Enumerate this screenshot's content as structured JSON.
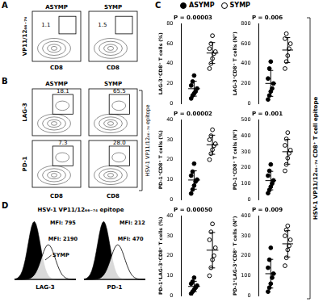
{
  "chart_data": [
    {
      "type": "scatter",
      "y_label": "LAG-3⁺CD8⁺ T cells (%)",
      "annotation": "P = 0.00003",
      "ylim": [
        0,
        80
      ],
      "yticks": [
        0,
        20,
        40,
        60,
        80
      ],
      "grid": false,
      "tick_labels": "y",
      "series": [
        {
          "name": "ASYMP",
          "color": "#000000",
          "marker": "filled",
          "values": [
            5,
            8,
            10,
            12,
            15,
            18,
            22,
            28
          ],
          "mean": 14.8,
          "sd": 7.5
        },
        {
          "name": "SYMP",
          "color": "#000000",
          "marker": "open",
          "values": [
            35,
            40,
            45,
            50,
            52,
            55,
            60,
            68
          ],
          "mean": 50.6,
          "sd": 10.5
        }
      ]
    },
    {
      "type": "scatter",
      "y_label": "LAG-3⁺CD8⁺ T cells (N°)",
      "annotation": "P = 0.006",
      "ylim": [
        0,
        800
      ],
      "yticks": [
        0,
        200,
        400,
        600,
        800
      ],
      "grid": false,
      "tick_labels": "y",
      "series": [
        {
          "name": "ASYMP",
          "color": "#000000",
          "marker": "filled",
          "values": [
            40,
            80,
            120,
            150,
            200,
            250,
            350,
            420
          ],
          "mean": 201,
          "sd": 130
        },
        {
          "name": "SYMP",
          "color": "#000000",
          "marker": "open",
          "values": [
            350,
            420,
            480,
            550,
            600,
            650,
            700
          ],
          "mean": 536,
          "sd": 125
        }
      ]
    },
    {
      "type": "scatter",
      "y_label": "PD-1⁺CD8⁺ T cells (%)",
      "annotation": "P = 0.00002",
      "ylim": [
        0,
        40
      ],
      "yticks": [
        0,
        10,
        20,
        30,
        40
      ],
      "grid": false,
      "tick_labels": "y",
      "series": [
        {
          "name": "ASYMP",
          "color": "#000000",
          "marker": "filled",
          "values": [
            3,
            5,
            7,
            9,
            10,
            12,
            14,
            18
          ],
          "mean": 9.8,
          "sd": 4.6
        },
        {
          "name": "SYMP",
          "color": "#000000",
          "marker": "open",
          "values": [
            20,
            23,
            25,
            27,
            28,
            30,
            32,
            35
          ],
          "mean": 27.5,
          "sd": 4.8
        }
      ]
    },
    {
      "type": "scatter",
      "y_label": "PD-1⁺CD8⁺ T cells (N°)",
      "annotation": "P = 0.001",
      "ylim": [
        0,
        500
      ],
      "yticks": [
        0,
        100,
        200,
        300,
        400,
        500
      ],
      "grid": false,
      "tick_labels": "y",
      "series": [
        {
          "name": "ASYMP",
          "color": "#000000",
          "marker": "filled",
          "values": [
            40,
            60,
            80,
            100,
            120,
            150,
            180,
            220
          ],
          "mean": 118.8,
          "sd": 58
        },
        {
          "name": "SYMP",
          "color": "#000000",
          "marker": "open",
          "values": [
            180,
            220,
            260,
            290,
            310,
            340,
            380,
            420
          ],
          "mean": 300,
          "sd": 78
        }
      ]
    },
    {
      "type": "scatter",
      "y_label": "PD-1⁺LAG-3⁺CD8⁺ T cells (%)",
      "annotation": "P = 0.00050",
      "ylim": [
        0,
        40
      ],
      "yticks": [
        0,
        10,
        20,
        30,
        40
      ],
      "grid": false,
      "tick_labels": "y",
      "series": [
        {
          "name": "ASYMP",
          "color": "#000000",
          "marker": "filled",
          "values": [
            1,
            2,
            3,
            4,
            5,
            6,
            7,
            9
          ],
          "mean": 4.6,
          "sd": 2.6
        },
        {
          "name": "SYMP",
          "color": "#000000",
          "marker": "open",
          "values": [
            10,
            14,
            18,
            20,
            24,
            28,
            32,
            36
          ],
          "mean": 22.8,
          "sd": 8.9
        }
      ]
    },
    {
      "type": "scatter",
      "y_label": "PD-1⁺LAG-3⁺CD8⁺ T cells (N°)",
      "annotation": "P = 0.009",
      "ylim": [
        0,
        400
      ],
      "yticks": [
        0,
        100,
        200,
        300,
        400
      ],
      "grid": false,
      "tick_labels": "y",
      "series": [
        {
          "name": "ASYMP",
          "color": "#000000",
          "marker": "filled",
          "values": [
            20,
            40,
            60,
            90,
            110,
            140,
            180,
            240
          ],
          "mean": 110,
          "sd": 72
        },
        {
          "name": "SYMP",
          "color": "#000000",
          "marker": "open",
          "values": [
            150,
            190,
            230,
            250,
            280,
            300,
            330,
            350
          ],
          "mean": 260,
          "sd": 66
        }
      ]
    }
  ],
  "panels": {
    "A": {
      "label": "A",
      "y_label": "VP11/12₆₆₋₇₄",
      "x_label": "CD8",
      "plots": [
        {
          "title": "ASYMP",
          "gate": "1.1"
        },
        {
          "title": "SYMP",
          "gate": "1.5"
        }
      ]
    },
    "B": {
      "label": "B",
      "columns": [
        "ASYMP",
        "SYMP"
      ],
      "x_label": "CD8",
      "side_label": "HSV-1 VP11/12₆₆₋₇₄ epitope",
      "rows": [
        {
          "y_label": "LAG-3",
          "gates": [
            "18.1",
            "65.5"
          ]
        },
        {
          "y_label": "PD-1",
          "gates": [
            "7.3",
            "28.0"
          ]
        }
      ]
    },
    "C": {
      "label": "C",
      "side_label": "HSV-1 VP11/12₆₆₋₇₄ CD8⁺ T cell epitope"
    },
    "D": {
      "label": "D",
      "title": "HSV-1 VP11/12₆₆₋₇₄ epitope",
      "arrow_label": "SYMP",
      "histograms": [
        {
          "x_label": "LAG-3",
          "mfi": [
            "MFI: 795",
            "MFI: 2190"
          ]
        },
        {
          "x_label": "PD-1",
          "mfi": [
            "MFI: 212",
            "MFI: 470"
          ]
        }
      ]
    }
  }
}
